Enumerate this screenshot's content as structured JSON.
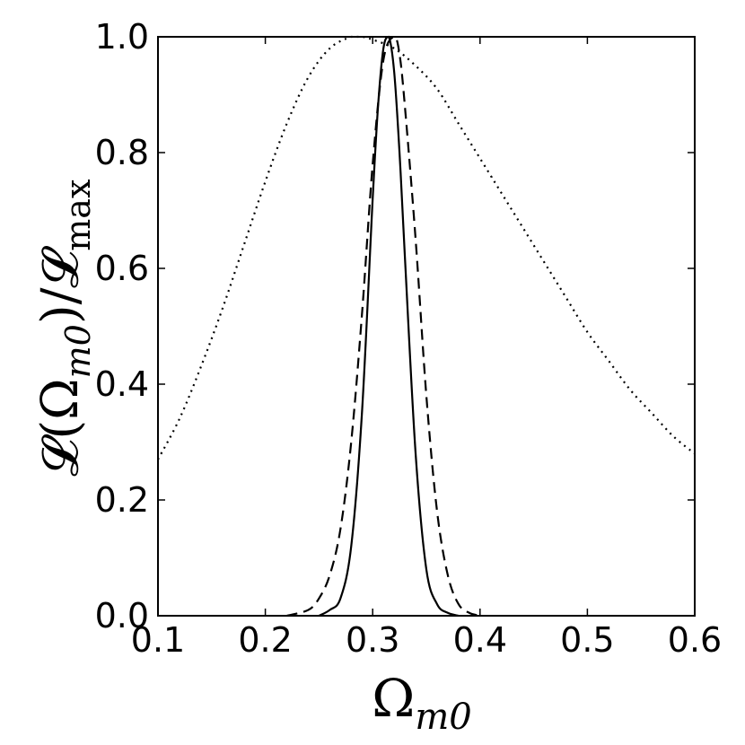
{
  "chart_data": {
    "type": "line",
    "title": "",
    "xlabel": "Ω",
    "xlabel_sub": "m0",
    "ylabel": "𝓛(Ω",
    "ylabel_sub1": "m0",
    "ylabel_mid": ")/𝓛",
    "ylabel_sub2": "max",
    "xlim": [
      0.1,
      0.6
    ],
    "ylim": [
      0.0,
      1.0
    ],
    "xticks": [
      "0.1",
      "0.2",
      "0.3",
      "0.4",
      "0.5",
      "0.6"
    ],
    "yticks": [
      "0.0",
      "0.2",
      "0.4",
      "0.6",
      "0.8",
      "1.0"
    ],
    "grid": false,
    "series": [
      {
        "style": "solid",
        "color": "#000000",
        "x": [
          0.25,
          0.26,
          0.27,
          0.28,
          0.29,
          0.3,
          0.305,
          0.31,
          0.315,
          0.32,
          0.325,
          0.33,
          0.34,
          0.35,
          0.36,
          0.37,
          0.38
        ],
        "y": [
          0.0,
          0.01,
          0.03,
          0.12,
          0.35,
          0.72,
          0.88,
          0.98,
          1.0,
          0.94,
          0.8,
          0.62,
          0.28,
          0.08,
          0.02,
          0.005,
          0.0
        ]
      },
      {
        "style": "dashed",
        "color": "#000000",
        "x": [
          0.22,
          0.24,
          0.25,
          0.26,
          0.27,
          0.28,
          0.29,
          0.3,
          0.31,
          0.32,
          0.325,
          0.33,
          0.34,
          0.35,
          0.36,
          0.37,
          0.38,
          0.39,
          0.4
        ],
        "y": [
          0.0,
          0.01,
          0.03,
          0.07,
          0.15,
          0.3,
          0.52,
          0.78,
          0.96,
          1.0,
          0.97,
          0.88,
          0.65,
          0.38,
          0.18,
          0.07,
          0.02,
          0.005,
          0.0
        ]
      },
      {
        "style": "dotted",
        "color": "#000000",
        "x": [
          0.1,
          0.12,
          0.14,
          0.16,
          0.18,
          0.2,
          0.22,
          0.24,
          0.26,
          0.28,
          0.29,
          0.3,
          0.32,
          0.34,
          0.36,
          0.38,
          0.4,
          0.42,
          0.44,
          0.46,
          0.48,
          0.5,
          0.52,
          0.54,
          0.56,
          0.58,
          0.6
        ],
        "y": [
          0.27,
          0.34,
          0.43,
          0.53,
          0.64,
          0.75,
          0.85,
          0.93,
          0.98,
          1.0,
          1.0,
          0.995,
          0.98,
          0.95,
          0.91,
          0.85,
          0.79,
          0.73,
          0.67,
          0.61,
          0.55,
          0.49,
          0.44,
          0.39,
          0.35,
          0.31,
          0.28
        ]
      }
    ]
  }
}
